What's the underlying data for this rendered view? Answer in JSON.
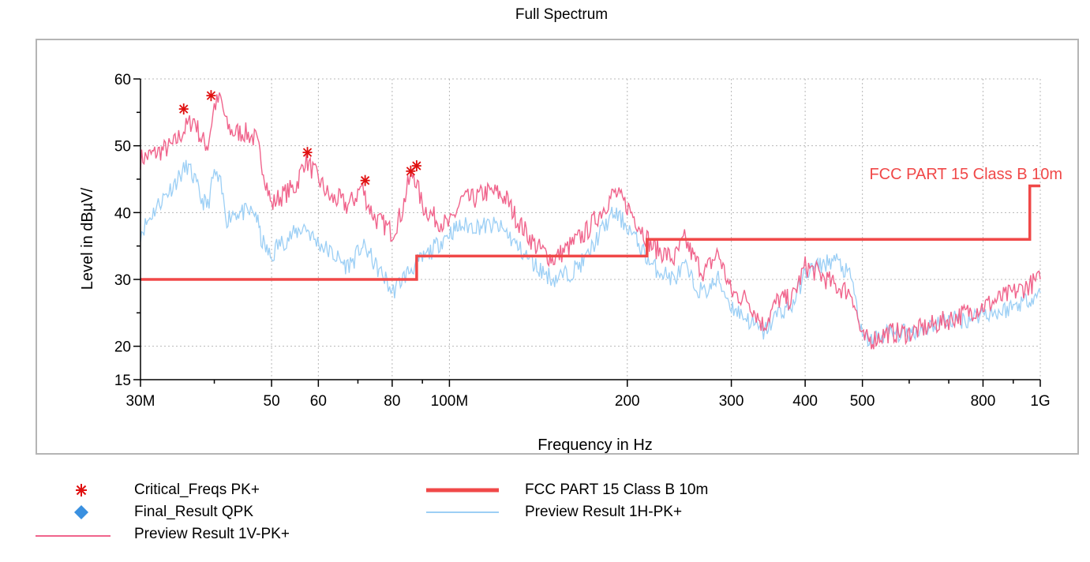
{
  "chart_data": {
    "type": "line",
    "title": "Full Spectrum",
    "xlabel": "Frequency in Hz",
    "ylabel": "Level in dBµV/",
    "x_scale": "log",
    "xlim": [
      30000000,
      1000000000
    ],
    "ylim": [
      15,
      60
    ],
    "x_ticks": [
      {
        "value": 30000000,
        "label": "30M"
      },
      {
        "value": 50000000,
        "label": "50"
      },
      {
        "value": 60000000,
        "label": "60"
      },
      {
        "value": 80000000,
        "label": "80"
      },
      {
        "value": 100000000,
        "label": "100M"
      },
      {
        "value": 200000000,
        "label": "200"
      },
      {
        "value": 300000000,
        "label": "300"
      },
      {
        "value": 400000000,
        "label": "400"
      },
      {
        "value": 500000000,
        "label": "500"
      },
      {
        "value": 800000000,
        "label": "800"
      },
      {
        "value": 1000000000,
        "label": "1G"
      }
    ],
    "x_minor_ticks": [
      40000000,
      70000000,
      90000000,
      600000000,
      700000000,
      900000000
    ],
    "y_ticks": [
      60,
      50,
      40,
      30,
      20,
      15
    ],
    "y_minor_ticks": [
      55,
      45,
      35,
      25
    ],
    "limit_annotation": "FCC PART 15 Class B 10m",
    "series": [
      {
        "name": "FCC PART 15 Class B 10m",
        "color": "#f04848",
        "style": "step",
        "x": [
          30000000,
          88000000,
          88000000,
          216000000,
          216000000,
          960000000,
          960000000,
          1000000000
        ],
        "y": [
          30,
          30,
          33.5,
          33.5,
          36,
          36,
          44,
          44
        ]
      },
      {
        "name": "Preview Result 1V-PK+",
        "color": "#f0648c",
        "x": [
          30000000,
          32000000,
          34000000,
          36000000,
          37000000,
          38000000,
          39000000,
          40000000,
          41000000,
          42000000,
          43000000,
          45000000,
          47000000,
          48000000,
          50000000,
          51000000,
          53000000,
          55000000,
          57000000,
          59000000,
          61000000,
          63000000,
          65000000,
          67000000,
          69000000,
          71000000,
          73000000,
          75000000,
          78000000,
          80000000,
          83000000,
          85000000,
          87000000,
          90000000,
          95000000,
          100000000,
          105000000,
          110000000,
          115000000,
          120000000,
          125000000,
          130000000,
          140000000,
          150000000,
          160000000,
          170000000,
          180000000,
          190000000,
          200000000,
          210000000,
          220000000,
          230000000,
          240000000,
          250000000,
          260000000,
          270000000,
          285000000,
          300000000,
          320000000,
          340000000,
          360000000,
          380000000,
          400000000,
          420000000,
          450000000,
          480000000,
          500000000,
          520000000,
          550000000,
          600000000,
          650000000,
          700000000,
          750000000,
          800000000,
          850000000,
          900000000,
          950000000,
          1000000000
        ],
        "y": [
          48,
          49,
          50,
          53,
          54,
          51,
          50,
          56,
          57,
          53,
          52,
          52,
          51,
          48,
          41,
          42,
          43,
          44,
          48,
          46,
          44,
          42,
          42,
          41,
          42,
          44,
          41,
          39,
          38,
          37,
          40,
          44,
          46,
          41,
          39,
          38,
          42,
          42,
          43,
          43,
          42,
          39,
          35,
          33,
          35,
          37,
          40,
          43,
          41,
          38,
          35,
          34,
          33,
          36,
          33,
          31,
          34,
          28,
          27,
          23,
          27,
          27,
          32,
          31,
          29,
          28,
          21,
          21,
          22,
          22,
          23,
          24,
          25,
          26,
          27,
          28,
          29,
          30
        ]
      },
      {
        "name": "Preview Result 1H-PK+",
        "color": "#9ccff5",
        "x": [
          30000000,
          32000000,
          34000000,
          36000000,
          37000000,
          38000000,
          39000000,
          40000000,
          41000000,
          42000000,
          43000000,
          45000000,
          47000000,
          48000000,
          50000000,
          51000000,
          53000000,
          55000000,
          57000000,
          59000000,
          61000000,
          63000000,
          65000000,
          67000000,
          69000000,
          71000000,
          73000000,
          75000000,
          78000000,
          80000000,
          83000000,
          85000000,
          87000000,
          90000000,
          95000000,
          100000000,
          105000000,
          110000000,
          115000000,
          120000000,
          125000000,
          130000000,
          140000000,
          150000000,
          160000000,
          170000000,
          180000000,
          190000000,
          200000000,
          210000000,
          220000000,
          230000000,
          240000000,
          250000000,
          260000000,
          270000000,
          285000000,
          300000000,
          320000000,
          340000000,
          360000000,
          380000000,
          400000000,
          420000000,
          450000000,
          480000000,
          500000000,
          520000000,
          550000000,
          600000000,
          650000000,
          700000000,
          750000000,
          800000000,
          850000000,
          900000000,
          950000000,
          1000000000
        ],
        "y": [
          37,
          41,
          44,
          47,
          45,
          42,
          41,
          46,
          44,
          39,
          40,
          40,
          40,
          36,
          33,
          35,
          36,
          37,
          38,
          36,
          35,
          34,
          33,
          32,
          33,
          35,
          34,
          32,
          30,
          28,
          30,
          31,
          32,
          33,
          35,
          37,
          38,
          38,
          38,
          38,
          37,
          35,
          32,
          30,
          31,
          33,
          37,
          40,
          38,
          35,
          32,
          31,
          30,
          32,
          29,
          28,
          30,
          26,
          24,
          22,
          25,
          26,
          31,
          32,
          33,
          30,
          21,
          21,
          22,
          22,
          23,
          24,
          24,
          25,
          25,
          26,
          27,
          28
        ]
      },
      {
        "name": "Critical_Freqs PK+",
        "color": "#e01010",
        "style": "marker",
        "x": [
          35500000,
          39500000,
          57500000,
          72000000,
          86000000,
          88000000
        ],
        "y": [
          55.5,
          57.5,
          49,
          44.8,
          46.2,
          47
        ]
      },
      {
        "name": "Final_Result QPK",
        "color": "#3a90e0",
        "style": "marker",
        "x": [],
        "y": []
      }
    ],
    "legend": [
      {
        "label": "Critical_Freqs PK+",
        "symbol": "star",
        "color": "#e01010"
      },
      {
        "label": "Final_Result QPK",
        "symbol": "diamond",
        "color": "#3a90e0"
      },
      {
        "label": "Preview Result 1V-PK+",
        "symbol": "thin-line",
        "color": "#f0648c"
      },
      {
        "label": "FCC PART 15 Class B 10m",
        "symbol": "thick-line",
        "color": "#f04848"
      },
      {
        "label": "Preview Result 1H-PK+",
        "symbol": "thin-line",
        "color": "#9ccff5"
      }
    ]
  }
}
